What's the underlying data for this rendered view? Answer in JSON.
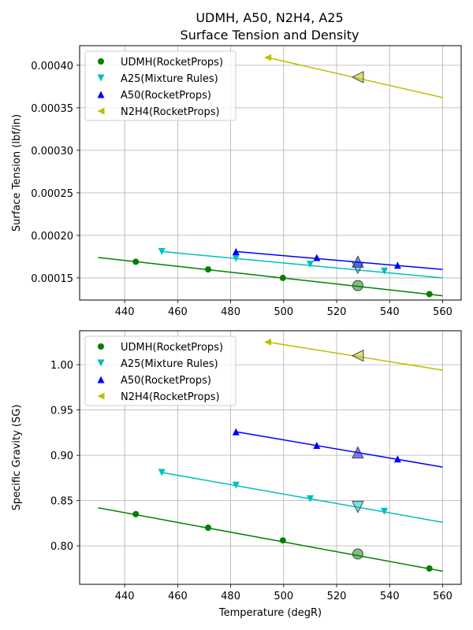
{
  "colors": {
    "UDMH": "#008000",
    "A25": "#00bfbf",
    "A50": "#0000ff",
    "N2H4": "#bfbf00",
    "grid": "#b0b0b0"
  },
  "chart_data": [
    {
      "type": "line",
      "title": "UDMH, A50, N2H4, A25",
      "subtitle": "Surface Tension and Density",
      "xlabel": "",
      "ylabel": "Surface Tension (lbf/in)",
      "xlim": [
        423,
        567
      ],
      "ylim": [
        0.000124,
        0.000423
      ],
      "xticks": [
        440,
        460,
        480,
        500,
        520,
        540,
        560
      ],
      "yticks": [
        0.00015,
        0.0002,
        0.00025,
        0.0003,
        0.00035,
        0.0004
      ],
      "ytick_labels": [
        "0.00015",
        "0.00020",
        "0.00025",
        "0.00030",
        "0.00035",
        "0.00040"
      ],
      "xtick_labels": [
        "440",
        "460",
        "480",
        "500",
        "520",
        "540",
        "560"
      ],
      "grid": true,
      "legend_position": "top-left",
      "series": [
        {
          "name": "UDMH(RocketProps)",
          "key": "UDMH",
          "marker": "circle",
          "line": [
            [
              430,
              0.000174
            ],
            [
              560,
              0.000129
            ]
          ],
          "points": [
            [
              444.2,
              0.000169
            ],
            [
              471.5,
              0.00016
            ],
            [
              499.7,
              0.00015
            ],
            [
              555,
              0.000131
            ]
          ],
          "highlight": [
            528,
            0.000141
          ]
        },
        {
          "name": "A25(Mixture Rules)",
          "key": "A25",
          "marker": "triangle-down",
          "line": [
            [
              454,
              0.000181
            ],
            [
              560,
              0.00015
            ]
          ],
          "points": [
            [
              454,
              0.000181
            ],
            [
              482,
              0.000173
            ],
            [
              510,
              0.000166
            ],
            [
              538,
              0.000158
            ]
          ],
          "highlight": [
            528,
            0.000162
          ]
        },
        {
          "name": "A50(RocketProps)",
          "key": "A50",
          "marker": "triangle-up",
          "line": [
            [
              482,
              0.000181
            ],
            [
              560,
              0.00016
            ]
          ],
          "points": [
            [
              482,
              0.000181
            ],
            [
              512.5,
              0.000174
            ],
            [
              543,
              0.000165
            ]
          ],
          "highlight": [
            528,
            0.000169
          ]
        },
        {
          "name": "N2H4(RocketProps)",
          "key": "N2H4",
          "marker": "triangle-left",
          "line": [
            [
              494,
              0.000409
            ],
            [
              560,
              0.000362
            ]
          ],
          "points": [
            [
              494,
              0.000409
            ]
          ],
          "highlight": [
            528,
            0.000386
          ]
        }
      ]
    },
    {
      "type": "line",
      "title": "",
      "xlabel": "Temperature (degR)",
      "ylabel": "Specific Gravity (SG)",
      "xlim": [
        423,
        567
      ],
      "ylim": [
        0.7575,
        1.0375
      ],
      "xticks": [
        440,
        460,
        480,
        500,
        520,
        540,
        560
      ],
      "yticks": [
        0.8,
        0.85,
        0.9,
        0.95,
        1.0
      ],
      "ytick_labels": [
        "0.80",
        "0.85",
        "0.90",
        "0.95",
        "1.00"
      ],
      "xtick_labels": [
        "440",
        "460",
        "480",
        "500",
        "520",
        "540",
        "560"
      ],
      "grid": true,
      "legend_position": "top-left",
      "series": [
        {
          "name": "UDMH(RocketProps)",
          "key": "UDMH",
          "marker": "circle",
          "line": [
            [
              430,
              0.842
            ],
            [
              560,
              0.772
            ]
          ],
          "points": [
            [
              444.2,
              0.835
            ],
            [
              471.5,
              0.82
            ],
            [
              499.7,
              0.806
            ],
            [
              555,
              0.775
            ]
          ],
          "highlight": [
            528,
            0.791
          ]
        },
        {
          "name": "A25(Mixture Rules)",
          "key": "A25",
          "marker": "triangle-down",
          "line": [
            [
              454,
              0.881
            ],
            [
              560,
              0.826
            ]
          ],
          "points": [
            [
              454,
              0.881
            ],
            [
              482,
              0.867
            ],
            [
              510,
              0.852
            ],
            [
              538,
              0.838
            ]
          ],
          "highlight": [
            528,
            0.843
          ]
        },
        {
          "name": "A50(RocketProps)",
          "key": "A50",
          "marker": "triangle-up",
          "line": [
            [
              482,
              0.926
            ],
            [
              560,
              0.887
            ]
          ],
          "points": [
            [
              482,
              0.926
            ],
            [
              512.5,
              0.911
            ],
            [
              543,
              0.896
            ]
          ],
          "highlight": [
            528,
            0.903
          ]
        },
        {
          "name": "N2H4(RocketProps)",
          "key": "N2H4",
          "marker": "triangle-left",
          "line": [
            [
              494,
              1.025
            ],
            [
              560,
              0.994
            ]
          ],
          "points": [
            [
              494,
              1.025
            ]
          ],
          "highlight": [
            528,
            1.01
          ]
        }
      ]
    }
  ]
}
